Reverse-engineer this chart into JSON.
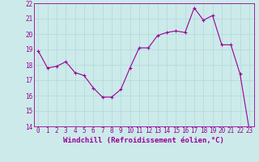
{
  "x": [
    0,
    1,
    2,
    3,
    4,
    5,
    6,
    7,
    8,
    9,
    10,
    11,
    12,
    13,
    14,
    15,
    16,
    17,
    18,
    19,
    20,
    21,
    22,
    23
  ],
  "y": [
    18.9,
    17.8,
    17.9,
    18.2,
    17.5,
    17.3,
    16.5,
    15.9,
    15.9,
    16.4,
    17.8,
    19.1,
    19.1,
    19.9,
    20.1,
    20.2,
    20.1,
    21.7,
    20.9,
    21.2,
    19.3,
    19.3,
    17.4,
    13.8
  ],
  "line_color": "#990099",
  "marker": "+",
  "marker_size": 3,
  "linewidth": 0.8,
  "xlabel": "Windchill (Refroidissement éolien,°C)",
  "xlabel_fontsize": 6.5,
  "ylim": [
    14,
    22
  ],
  "xlim": [
    -0.5,
    23.5
  ],
  "yticks": [
    14,
    15,
    16,
    17,
    18,
    19,
    20,
    21,
    22
  ],
  "xticks": [
    0,
    1,
    2,
    3,
    4,
    5,
    6,
    7,
    8,
    9,
    10,
    11,
    12,
    13,
    14,
    15,
    16,
    17,
    18,
    19,
    20,
    21,
    22,
    23
  ],
  "xtick_labels": [
    "0",
    "1",
    "2",
    "3",
    "4",
    "5",
    "6",
    "7",
    "8",
    "9",
    "10",
    "11",
    "12",
    "13",
    "14",
    "15",
    "16",
    "17",
    "18",
    "19",
    "20",
    "21",
    "22",
    "23"
  ],
  "tick_fontsize": 5.5,
  "grid_color": "#b0d8d8",
  "bg_color": "#cceaea",
  "fig_bg_color": "#cceaea"
}
